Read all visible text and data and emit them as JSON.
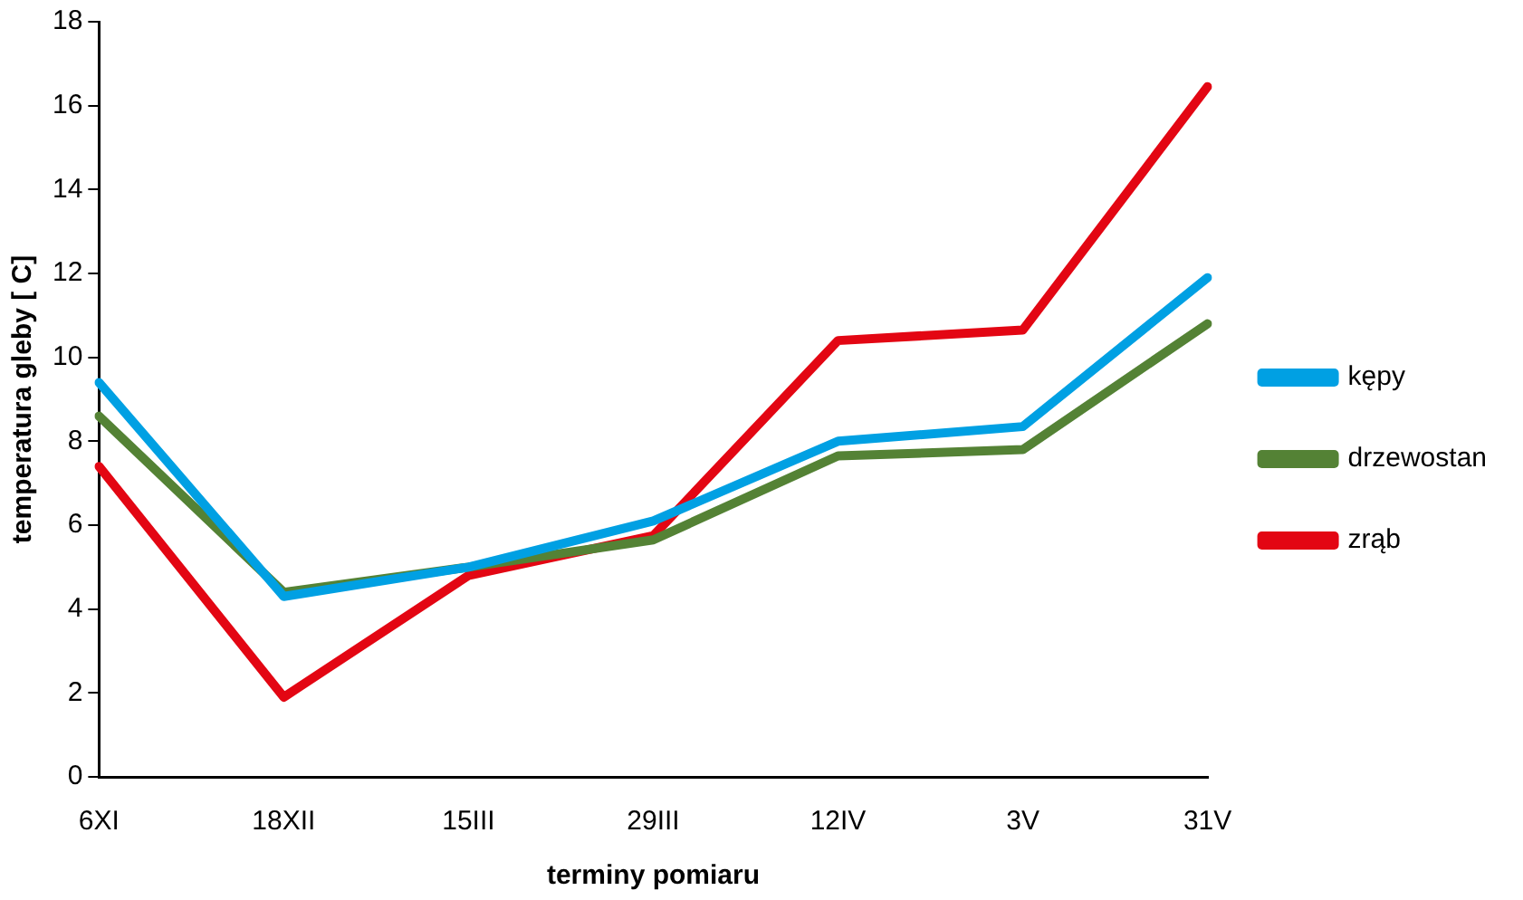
{
  "chart_data": {
    "type": "line",
    "xlabel": "terminy pomiaru",
    "ylabel": "temperatura gleby [ C]",
    "categories": [
      "6XI",
      "18XII",
      "15III",
      "29III",
      "12IV",
      "3V",
      "31V"
    ],
    "series": [
      {
        "name": "kępy",
        "color": "#00a0e3",
        "values": [
          9.4,
          4.3,
          5.0,
          6.1,
          8.0,
          8.35,
          11.9
        ]
      },
      {
        "name": "drzewostan",
        "color": "#548235",
        "values": [
          8.6,
          4.4,
          5.0,
          5.65,
          7.65,
          7.8,
          10.8
        ]
      },
      {
        "name": "zrąb",
        "color": "#e30613",
        "values": [
          7.4,
          1.9,
          4.8,
          5.75,
          10.4,
          10.65,
          16.45
        ]
      }
    ],
    "ylim": [
      0,
      18
    ],
    "yticks": [
      0,
      2,
      4,
      6,
      8,
      10,
      12,
      14,
      16,
      18
    ],
    "grid": false,
    "legend": "right",
    "marker": "none",
    "line_style": "solid"
  }
}
